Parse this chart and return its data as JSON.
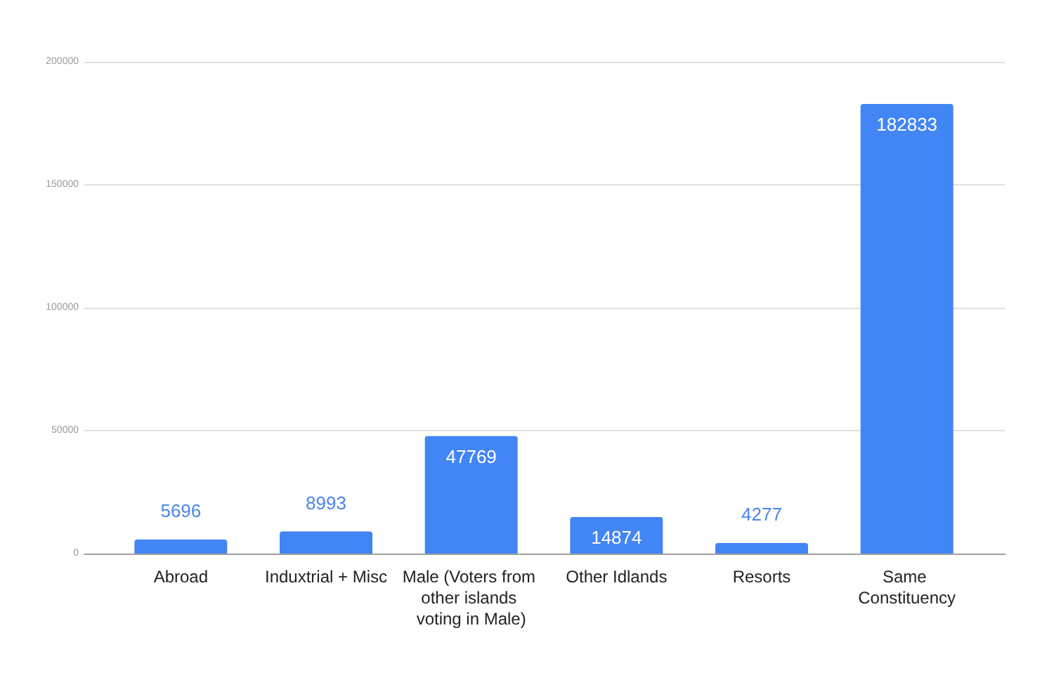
{
  "chart_data": {
    "type": "bar",
    "categories": [
      "Abroad",
      "Induxtrial + Misc",
      "Male (Voters from other islands voting in Male)",
      "Other Idlands",
      "Resorts",
      "Same Constituency"
    ],
    "values": [
      5696,
      8993,
      47769,
      14874,
      4277,
      182833
    ],
    "color": "#4285f4",
    "ylim": [
      0,
      200000
    ],
    "yticks": [
      0,
      50000,
      100000,
      150000,
      200000
    ],
    "grid": "y",
    "data_labels": true
  }
}
